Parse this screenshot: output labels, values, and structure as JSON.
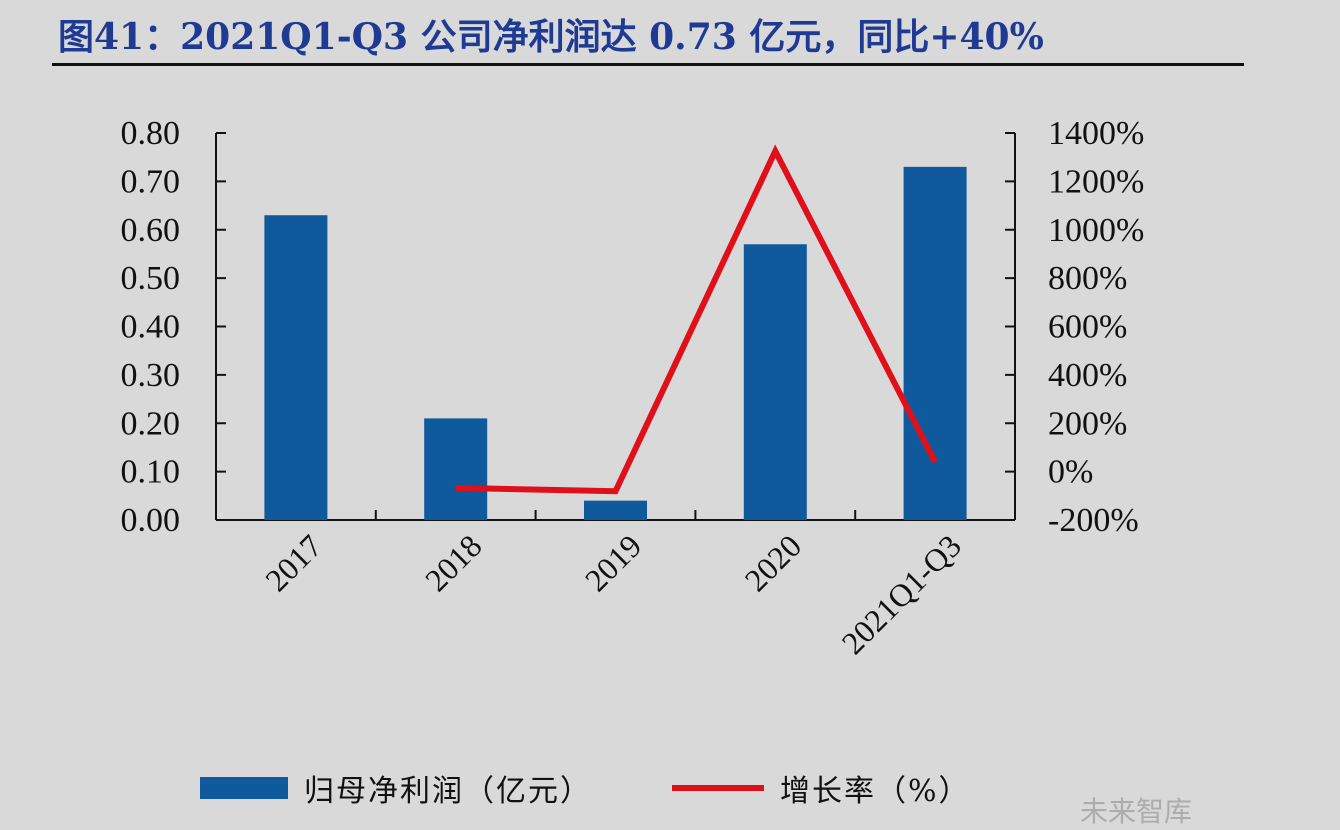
{
  "title": "图41：2021Q1-Q3 公司净利润达 0.73 亿元，同比+40%",
  "watermark": "未来智库",
  "colors": {
    "title": "#1f3a93",
    "bar": "#0e5a9c",
    "line": "#e0101a",
    "background": "#d9d9d9"
  },
  "chart_data": {
    "type": "bar",
    "categories": [
      "2017",
      "2018",
      "2019",
      "2020",
      "2021Q1-Q3"
    ],
    "series": [
      {
        "name": "归母净利润（亿元）",
        "type": "bar",
        "axis": "left",
        "values": [
          0.63,
          0.21,
          0.04,
          0.57,
          0.73
        ]
      },
      {
        "name": "增长率（%）",
        "type": "line",
        "axis": "right",
        "values": [
          null,
          -67,
          -81,
          1325,
          40
        ]
      }
    ],
    "y_left": {
      "ylim": [
        0,
        0.8
      ],
      "ticks": [
        "0.00",
        "0.10",
        "0.20",
        "0.30",
        "0.40",
        "0.50",
        "0.60",
        "0.70",
        "0.80"
      ]
    },
    "y_right": {
      "ylim": [
        -200,
        1400
      ],
      "ticks": [
        "-200%",
        "0%",
        "200%",
        "400%",
        "600%",
        "800%",
        "1000%",
        "1200%",
        "1400%"
      ]
    },
    "legend": {
      "position": "bottom",
      "items": [
        "归母净利润（亿元）",
        "增长率（%）"
      ]
    },
    "grid": false
  }
}
